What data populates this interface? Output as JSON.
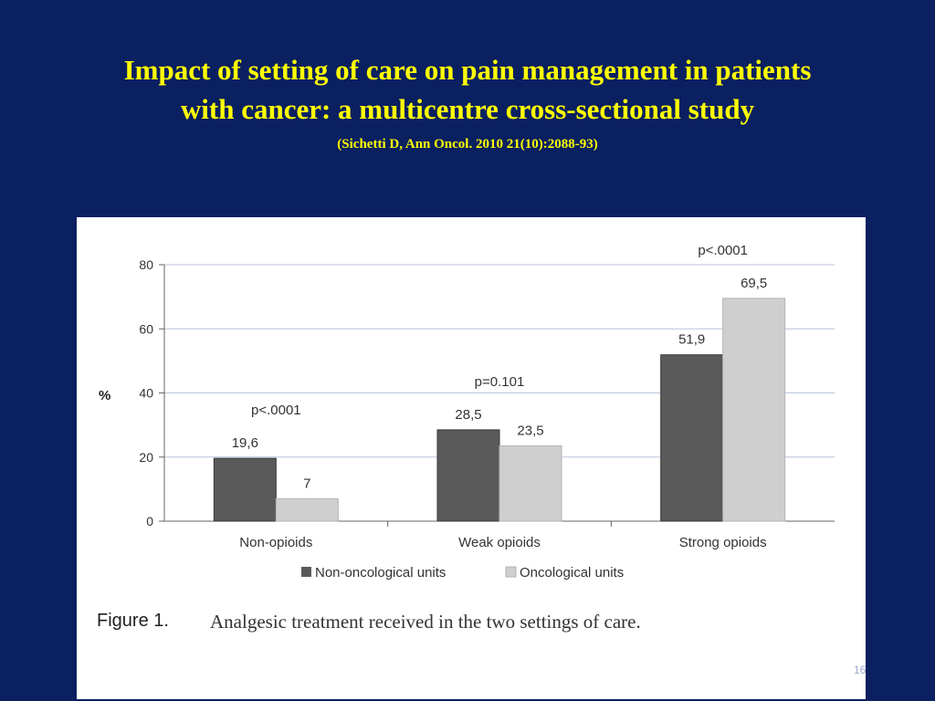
{
  "slide": {
    "title_line1": "Impact of setting of care on pain management in patients",
    "title_line2": "with cancer: a multicentre cross-sectional study",
    "citation": "(Sichetti D, Ann Oncol. 2010  21(10):2088-93)",
    "slide_number": "16",
    "background_color": "#0b2060",
    "title_color": "#ffff00"
  },
  "chart_data": {
    "type": "bar",
    "categories": [
      "Non-opioids",
      "Weak opioids",
      "Strong opioids"
    ],
    "series": [
      {
        "name": "Non-oncological units",
        "values": [
          19.6,
          28.5,
          51.9
        ],
        "labels": [
          "19,6",
          "28,5",
          "51,9"
        ],
        "color": "#5a5a5a"
      },
      {
        "name": "Oncological units",
        "values": [
          7,
          23.5,
          69.5
        ],
        "labels": [
          "7",
          "23,5",
          "69,5"
        ],
        "color": "#cfcfcf"
      }
    ],
    "p_values": [
      "p<.0001",
      "p=0.101",
      "p<.0001"
    ],
    "ylabel": "%",
    "ylim": [
      0,
      80
    ],
    "yticks": [
      "0",
      "20",
      "40",
      "60",
      "80"
    ],
    "grid": true,
    "legend_position": "bottom",
    "figure_label": "Figure 1.",
    "caption": "Analgesic treatment received in the two settings of care."
  }
}
